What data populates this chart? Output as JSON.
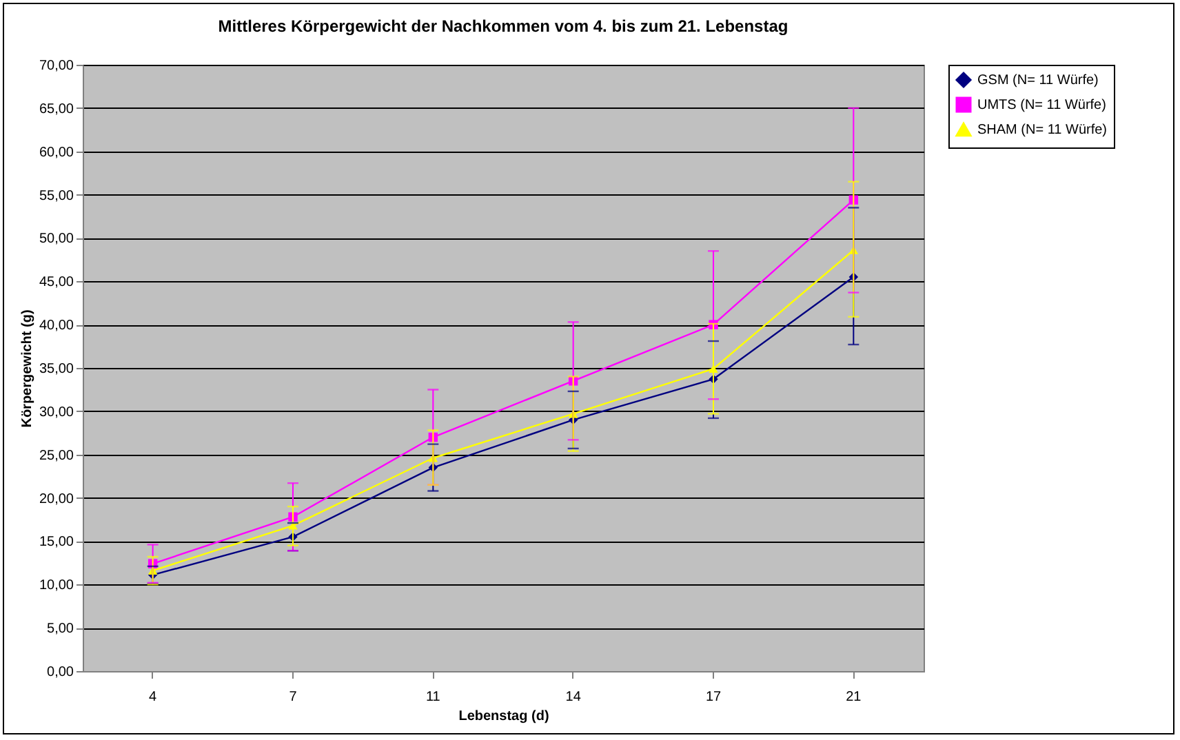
{
  "chart_data": {
    "type": "line",
    "title": "Mittleres Körpergewicht der Nachkommen vom 4. bis zum 21. Lebenstag",
    "xlabel": "Lebenstag (d)",
    "ylabel": "Körpergewicht (g)",
    "categories": [
      "4",
      "7",
      "11",
      "14",
      "17",
      "21"
    ],
    "series": [
      {
        "name": "GSM (N= 11 Würfe)",
        "color": "#000080",
        "marker": "diamond",
        "values": [
          11.1,
          15.5,
          23.5,
          29.0,
          33.7,
          45.5
        ],
        "errors": [
          [
            10.1,
            12.1
          ],
          [
            13.9,
            17.1
          ],
          [
            20.8,
            26.2
          ],
          [
            25.7,
            32.3
          ],
          [
            29.2,
            38.1
          ],
          [
            37.7,
            53.5
          ]
        ]
      },
      {
        "name": "UMTS (N= 11 Würfe)",
        "color": "#ff00ff",
        "marker": "square",
        "values": [
          12.4,
          17.8,
          27.0,
          33.5,
          40.0,
          54.4
        ],
        "errors": [
          [
            10.2,
            14.6
          ],
          [
            13.9,
            21.7
          ],
          [
            21.5,
            32.5
          ],
          [
            26.7,
            40.3
          ],
          [
            31.4,
            48.5
          ],
          [
            43.7,
            65.0
          ]
        ]
      },
      {
        "name": "SHAM (N= 11 Würfe)",
        "color": "#ffff00",
        "marker": "triangle",
        "values": [
          11.6,
          16.8,
          24.6,
          29.7,
          34.9,
          48.6
        ],
        "errors": [
          [
            10.0,
            13.2
          ],
          [
            14.5,
            19.0
          ],
          [
            21.5,
            27.8
          ],
          [
            25.4,
            34.0
          ],
          [
            29.7,
            40.1
          ],
          [
            40.9,
            56.5
          ]
        ]
      }
    ],
    "ylim": [
      0,
      70
    ],
    "yticks": [
      {
        "value": 0,
        "label": "0,00"
      },
      {
        "value": 5,
        "label": "5,00"
      },
      {
        "value": 10,
        "label": "10,00"
      },
      {
        "value": 15,
        "label": "15,00"
      },
      {
        "value": 20,
        "label": "20,00"
      },
      {
        "value": 25,
        "label": "25,00"
      },
      {
        "value": 30,
        "label": "30,00"
      },
      {
        "value": 35,
        "label": "35,00"
      },
      {
        "value": 40,
        "label": "40,00"
      },
      {
        "value": 45,
        "label": "45,00"
      },
      {
        "value": 50,
        "label": "50,00"
      },
      {
        "value": 55,
        "label": "55,00"
      },
      {
        "value": 60,
        "label": "60,00"
      },
      {
        "value": 65,
        "label": "65,00"
      },
      {
        "value": 70,
        "label": "70,00"
      }
    ],
    "grid": "y",
    "legend": "right",
    "line_style": "solid"
  }
}
